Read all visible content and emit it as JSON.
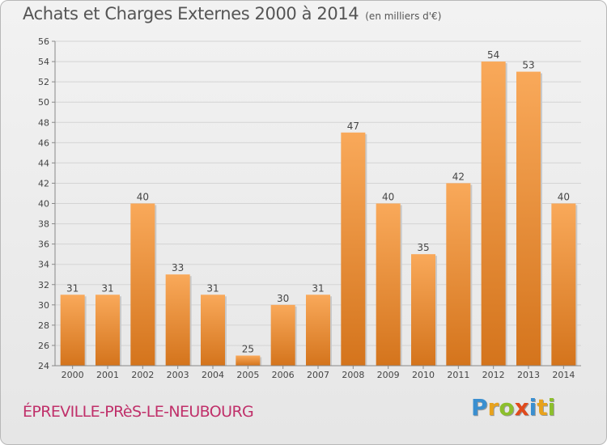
{
  "header": {
    "title": "Achats et Charges Externes 2000 à 2014",
    "subtitle": "(en milliers d'€)"
  },
  "footer": {
    "commune": "ÉPREVILLE-PRèS-LE-NEUBOURG",
    "logo_letters": [
      {
        "char": "P",
        "color": "#3a8fd0"
      },
      {
        "char": "r",
        "color": "#e8a21c"
      },
      {
        "char": "o",
        "color": "#8cbf2c"
      },
      {
        "char": "x",
        "color": "#e04a1c"
      },
      {
        "char": "i",
        "color": "#3a8fd0"
      },
      {
        "char": "t",
        "color": "#e8a21c"
      },
      {
        "char": "i",
        "color": "#8cbf2c"
      }
    ]
  },
  "colors": {
    "bar_light": "#f9a95a",
    "bar_dark": "#d4741c",
    "grid": "#d4d4d4",
    "title": "#555555",
    "commune": "#c0306a"
  },
  "chart_data": {
    "type": "bar",
    "title": "Achats et Charges Externes 2000 à 2014",
    "subtitle": "(en milliers d'€)",
    "xlabel": "",
    "ylabel": "",
    "categories": [
      "2000",
      "2001",
      "2002",
      "2003",
      "2004",
      "2005",
      "2006",
      "2007",
      "2008",
      "2009",
      "2010",
      "2011",
      "2012",
      "2013",
      "2014"
    ],
    "values": [
      31,
      31,
      40,
      33,
      31,
      25,
      30,
      31,
      47,
      40,
      35,
      42,
      54,
      53,
      40
    ],
    "ylim": [
      24,
      56
    ],
    "yticks": [
      24,
      26,
      28,
      30,
      32,
      34,
      36,
      38,
      40,
      42,
      44,
      46,
      48,
      50,
      52,
      54,
      56
    ],
    "grid": true,
    "legend": "none"
  }
}
